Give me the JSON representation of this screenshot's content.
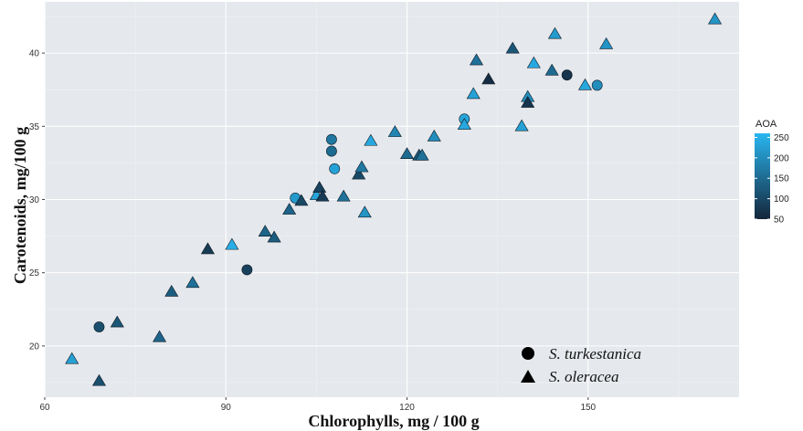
{
  "chart_data": {
    "type": "scatter",
    "xlabel": "Chlorophylls, mg / 100 g",
    "ylabel": "Carotenoids, mg/100 g",
    "xlim": [
      60,
      175
    ],
    "ylim": [
      16.5,
      43.5
    ],
    "x_ticks": [
      "60",
      "90",
      "120",
      "150"
    ],
    "y_ticks": [
      "20",
      "25",
      "30",
      "35",
      "40"
    ],
    "grid": true,
    "panel_background": "#e5e8ec",
    "color_scale": {
      "title": "AOA",
      "min": 50,
      "max": 260,
      "ticks": [
        "50",
        "100",
        "150",
        "200",
        "250"
      ],
      "low_color": "#14263a",
      "high_color": "#29b6f0"
    },
    "shape_legend": {
      "placement": "bottom-right",
      "items": [
        {
          "shape": "circle",
          "label": "S. turkestanica"
        },
        {
          "shape": "triangle",
          "label": "S. oleracea"
        }
      ]
    },
    "series": [
      {
        "name": "S. turkestanica",
        "shape": "circle",
        "points": [
          {
            "x": 69,
            "y": 21.3,
            "aoa": 110
          },
          {
            "x": 93.5,
            "y": 25.2,
            "aoa": 90
          },
          {
            "x": 101.5,
            "y": 30.1,
            "aoa": 220
          },
          {
            "x": 107.5,
            "y": 34.1,
            "aoa": 170
          },
          {
            "x": 107.5,
            "y": 33.3,
            "aoa": 150
          },
          {
            "x": 108,
            "y": 32.1,
            "aoa": 230
          },
          {
            "x": 129.5,
            "y": 35.5,
            "aoa": 235
          },
          {
            "x": 146.5,
            "y": 38.5,
            "aoa": 70
          },
          {
            "x": 151.5,
            "y": 37.8,
            "aoa": 200
          }
        ]
      },
      {
        "name": "S. oleracea",
        "shape": "triangle",
        "points": [
          {
            "x": 64.5,
            "y": 19.1,
            "aoa": 230
          },
          {
            "x": 69,
            "y": 17.6,
            "aoa": 110
          },
          {
            "x": 72,
            "y": 21.6,
            "aoa": 120
          },
          {
            "x": 79,
            "y": 20.6,
            "aoa": 140
          },
          {
            "x": 81,
            "y": 23.7,
            "aoa": 130
          },
          {
            "x": 84.5,
            "y": 24.3,
            "aoa": 160
          },
          {
            "x": 87,
            "y": 26.6,
            "aoa": 80
          },
          {
            "x": 91,
            "y": 26.9,
            "aoa": 250
          },
          {
            "x": 96.5,
            "y": 27.8,
            "aoa": 140
          },
          {
            "x": 98,
            "y": 27.4,
            "aoa": 130
          },
          {
            "x": 100.5,
            "y": 29.3,
            "aoa": 140
          },
          {
            "x": 102.5,
            "y": 29.9,
            "aoa": 100
          },
          {
            "x": 105,
            "y": 30.3,
            "aoa": 235
          },
          {
            "x": 105.5,
            "y": 30.8,
            "aoa": 90
          },
          {
            "x": 106,
            "y": 30.2,
            "aoa": 80
          },
          {
            "x": 109.5,
            "y": 30.2,
            "aoa": 160
          },
          {
            "x": 112,
            "y": 31.7,
            "aoa": 100
          },
          {
            "x": 112.5,
            "y": 32.2,
            "aoa": 170
          },
          {
            "x": 113,
            "y": 29.1,
            "aoa": 210
          },
          {
            "x": 114,
            "y": 34.0,
            "aoa": 240
          },
          {
            "x": 118,
            "y": 34.6,
            "aoa": 190
          },
          {
            "x": 120,
            "y": 33.1,
            "aoa": 150
          },
          {
            "x": 122,
            "y": 33.0,
            "aoa": 120
          },
          {
            "x": 122.5,
            "y": 33.0,
            "aoa": 160
          },
          {
            "x": 124.5,
            "y": 34.3,
            "aoa": 200
          },
          {
            "x": 129.5,
            "y": 35.1,
            "aoa": 240
          },
          {
            "x": 131,
            "y": 37.2,
            "aoa": 230
          },
          {
            "x": 131.5,
            "y": 39.5,
            "aoa": 160
          },
          {
            "x": 133.5,
            "y": 38.2,
            "aoa": 60
          },
          {
            "x": 137.5,
            "y": 40.3,
            "aoa": 120
          },
          {
            "x": 139,
            "y": 35.0,
            "aoa": 230
          },
          {
            "x": 140,
            "y": 37.0,
            "aoa": 200
          },
          {
            "x": 140,
            "y": 36.6,
            "aoa": 70
          },
          {
            "x": 141,
            "y": 39.3,
            "aoa": 240
          },
          {
            "x": 144,
            "y": 38.8,
            "aoa": 150
          },
          {
            "x": 144.5,
            "y": 41.3,
            "aoa": 220
          },
          {
            "x": 149.5,
            "y": 37.8,
            "aoa": 240
          },
          {
            "x": 153,
            "y": 40.6,
            "aoa": 210
          },
          {
            "x": 171,
            "y": 42.3,
            "aoa": 210
          }
        ]
      }
    ]
  }
}
